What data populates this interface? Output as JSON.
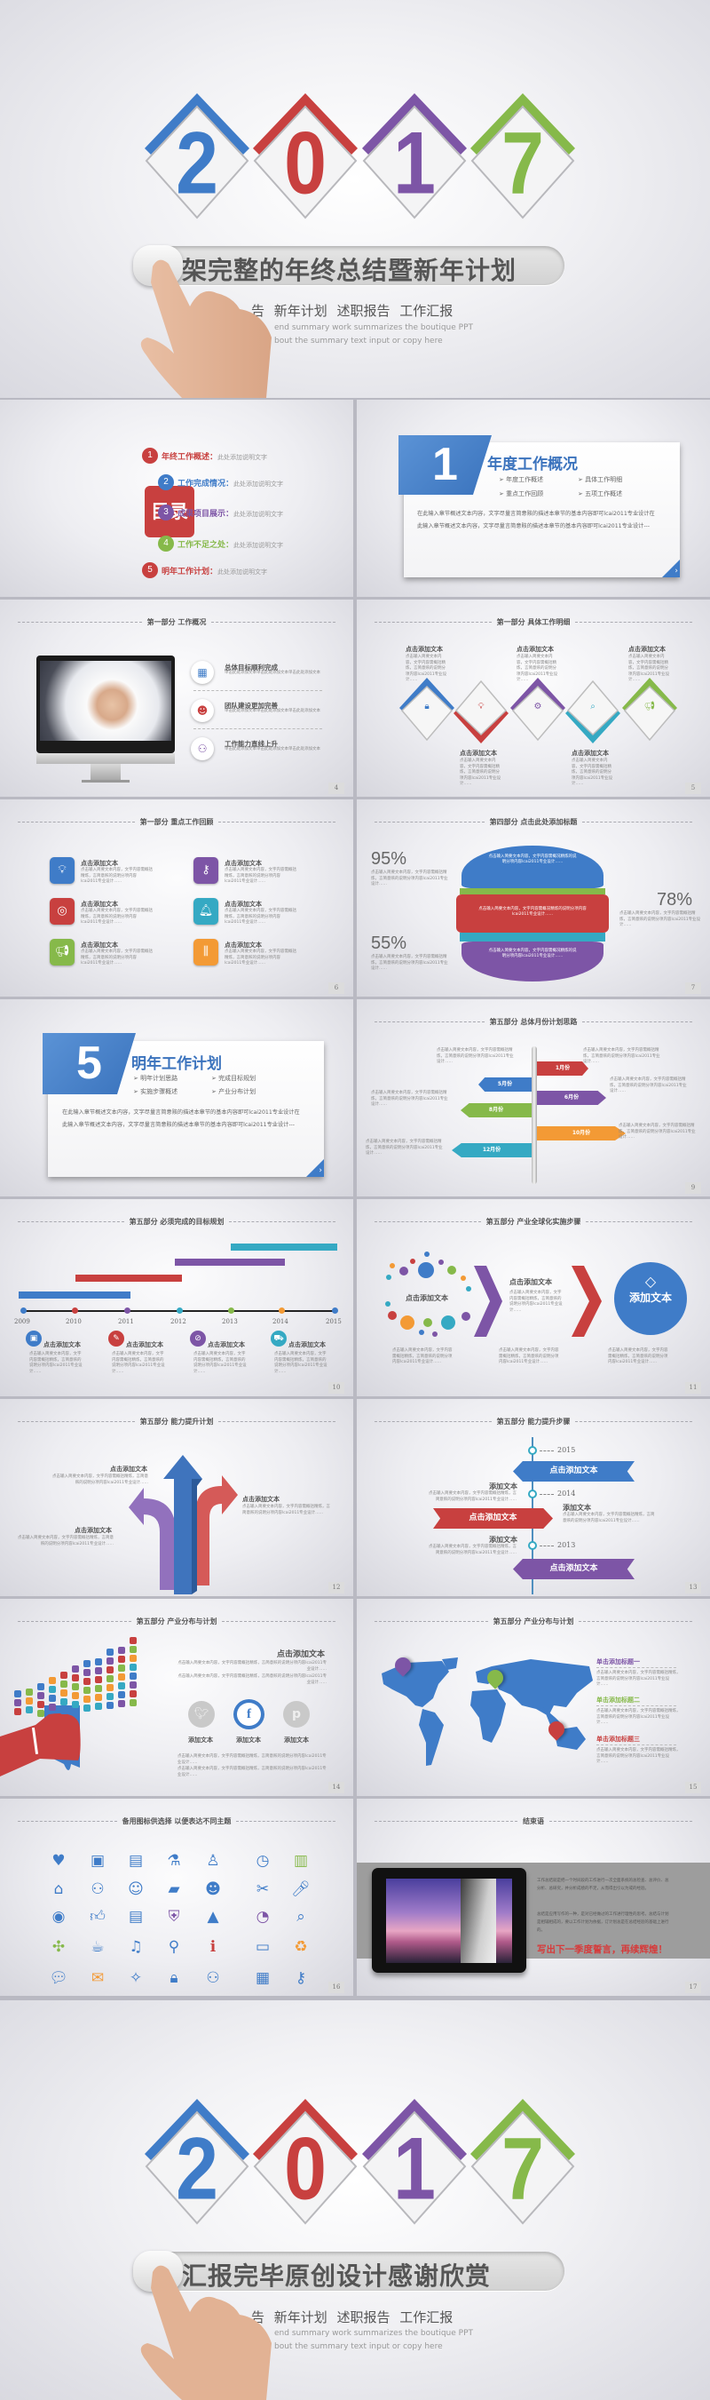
{
  "colors": {
    "blue": "#3f7cc8",
    "red": "#c8403f",
    "purple": "#7d55a6",
    "green": "#86b94a",
    "teal": "#35a9c3",
    "orange": "#f39a35"
  },
  "common": {
    "add_text": "点击添加文本",
    "add_text_short": "添加文本",
    "desc": "点击输入简要文本内容，文字内容需概括精炼，言简意赅的说明分项内容lcai2011专业设计……",
    "click_desc": "单击此处添加文本单击此处添加文本单击此处添加文本",
    "toc_sub": "此处添加说明文字",
    "para": "在此输入章节概述文本内容，文字尽量言简意赅的描述本章节的基本内容即可lcai2011专业设计在此输入章节概述文本内容，文字尽量言简意赅的描述本章节的基本内容即可lcai2011专业设计---"
  },
  "cover": {
    "digits": [
      "2",
      "0",
      "1",
      "7"
    ],
    "title": "架完整的年终总结暨新年计划",
    "subtitle": "告  新年计划 述职报告  工作汇报",
    "en_line1": "end summary work summarizes the boutique PPT",
    "en_line2": "bout the summary text input or copy here"
  },
  "toc": {
    "badge": "目录",
    "items": [
      {
        "num": "1",
        "label": "年终工作概述：",
        "color": "#c8403f"
      },
      {
        "num": "2",
        "label": "工作完成情况：",
        "color": "#3f7cc8"
      },
      {
        "num": "3",
        "label": "成果项目展示：",
        "color": "#7d55a6"
      },
      {
        "num": "4",
        "label": "工作不足之处：",
        "color": "#86b94a"
      },
      {
        "num": "5",
        "label": "明年工作计划：",
        "color": "#c8403f"
      }
    ]
  },
  "section1": {
    "num": "1",
    "title": "年度工作概况",
    "bullets": [
      "年度工作概述",
      "具体工作明细",
      "重点工作回顾",
      "五项工作概述"
    ]
  },
  "slide4": {
    "header": "第一部分  工作概况",
    "page": "4",
    "items": [
      {
        "title": "总体目标顺利完成",
        "icon": "chart-board-icon"
      },
      {
        "title": "团队建设更加完善",
        "icon": "head-icon"
      },
      {
        "title": "工作能力直线上升",
        "icon": "team-icon"
      }
    ]
  },
  "slide5": {
    "header": "第一部分  具体工作明细",
    "page": "5",
    "icons": [
      "lock-icon",
      "bulb-icon",
      "gear-icon",
      "search-icon",
      "megaphone-icon"
    ]
  },
  "slide6": {
    "header": "第一部分  重点工作回顾",
    "page": "6",
    "icons": [
      "bulb-icon",
      "key-icon",
      "target-icon",
      "bell-icon",
      "megaphone-icon",
      "sliders-icon"
    ]
  },
  "slide7": {
    "header": "第四部分  点击此处添加标题",
    "page": "7",
    "percents": [
      "95%",
      "78%",
      "55%"
    ],
    "band_text_short": "点击输入简要文本内容，文字内容需概况精炼的说明分项内容lcai2011专业设计……"
  },
  "section5": {
    "num": "5",
    "title": "明年工作计划",
    "bullets": [
      "明年计划思路",
      "完成目标规划",
      "实施步骤概述",
      "产业分布计划"
    ]
  },
  "slide9": {
    "header": "第五部分  总体月份计划思路",
    "page": "9",
    "signs": [
      "1月份",
      "5月份",
      "6月份",
      "8月份",
      "10月份",
      "12月份"
    ]
  },
  "slide10": {
    "header": "第五部分  必须完成的目标规划",
    "page": "10",
    "years": [
      "2009",
      "2010",
      "2011",
      "2012",
      "2013",
      "2014",
      "2015"
    ]
  },
  "slide11": {
    "header": "第五部分  产业全球化实施步骤",
    "page": "11"
  },
  "slide12": {
    "header": "第五部分  能力提升计划",
    "page": "12"
  },
  "slide13": {
    "header": "第五部分  能力提升步骤",
    "page": "13",
    "years": [
      "2015",
      "2014",
      "2013"
    ]
  },
  "slide14": {
    "header": "第五部分  产业分布与计划",
    "page": "14",
    "social": [
      "twitter-icon",
      "facebook-icon",
      "pinterest-icon"
    ]
  },
  "slide15": {
    "header": "第五部分  产业分布与计划",
    "page": "15",
    "titles": [
      "单击添加标题一",
      "单击添加标题二",
      "单击添加标题三"
    ]
  },
  "slide16": {
    "header": "备用图标供选择 以便表达不同主题",
    "page": "16"
  },
  "slide17": {
    "header": "结束语",
    "page": "17",
    "para1": "工作总结就是把一个时间段的工作进行一次全面系统的总检查、总评价、总分析、总研究，并分析成绩的不足，从而得出引以为戒的经验。",
    "para2": "总结是应用写作的一种，是对已经做过的工作进行理性的思考。总结与计划是相辅相成的，要以工作计划为依据，订计划总是在总结经验的基础上进行的。",
    "slogan": "写出下一季度誓言，再续辉煌！"
  },
  "closing": {
    "title": "汇报完毕原创设计感谢欣赏"
  }
}
